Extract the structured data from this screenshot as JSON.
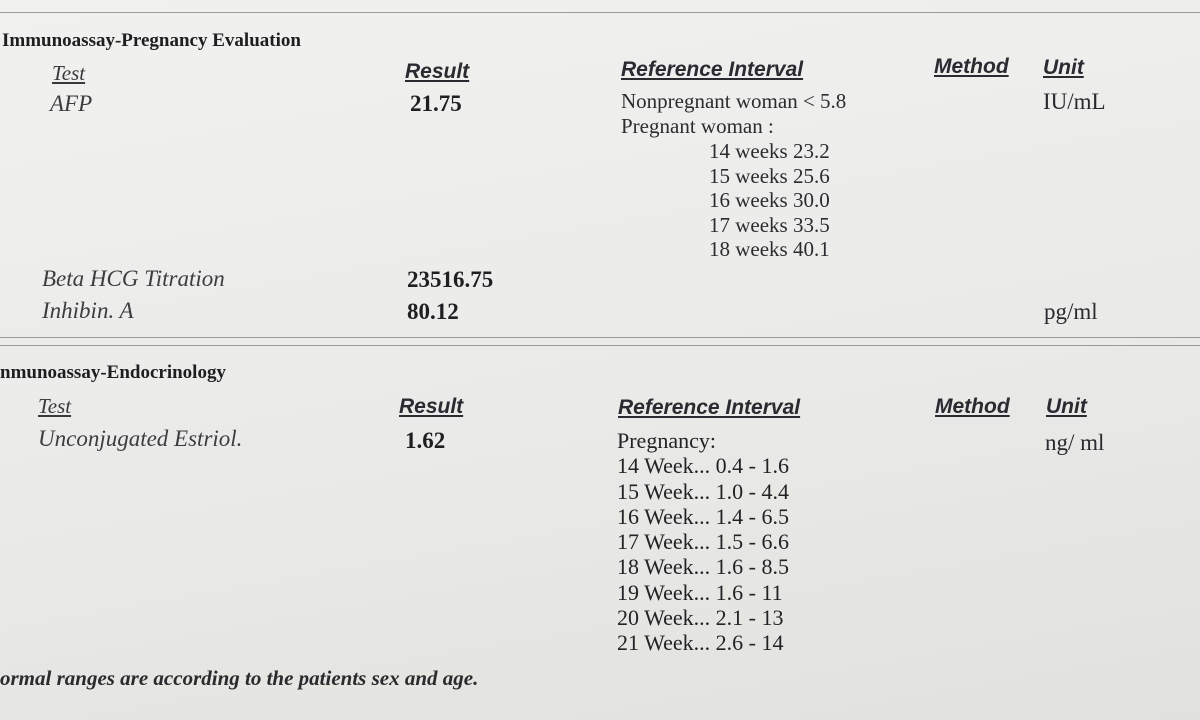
{
  "sections": [
    {
      "title": "Immunoassay-Pregnancy Evaluation",
      "headers": {
        "test": "Test",
        "result": "Result",
        "reference": "Reference Interval",
        "method": "Method",
        "unit": "Unit"
      },
      "rows": [
        {
          "test": "AFP",
          "result": "21.75",
          "unit": "IU/mL",
          "reference": [
            "Nonpregnant woman  < 5.8",
            "Pregnant woman :"
          ],
          "reference_weeks": [
            "14 weeks  23.2",
            "15 weeks  25.6",
            "16 weeks  30.0",
            "17 weeks  33.5",
            "18 weeks  40.1"
          ]
        },
        {
          "test": "Beta HCG Titration",
          "result": "23516.75",
          "unit": ""
        },
        {
          "test": "Inhibin. A",
          "result": "80.12",
          "unit": "pg/ml"
        }
      ]
    },
    {
      "title": "nmunoassay-Endocrinology",
      "headers": {
        "test": "Test",
        "result": "Result",
        "reference": "Reference Interval",
        "method": "Method",
        "unit": "Unit"
      },
      "rows": [
        {
          "test": "Unconjugated Estriol.",
          "result": "1.62",
          "unit": "ng/ ml",
          "reference": [
            "Pregnancy:",
            "14 Week... 0.4 - 1.6",
            "15 Week... 1.0 - 4.4",
            "16 Week... 1.4 - 6.5",
            "17 Week... 1.5 - 6.6",
            "18 Week... 1.6 - 8.5",
            "19 Week... 1.6 - 11",
            "20 Week... 2.1 - 13",
            "21 Week... 2.6 - 14"
          ]
        }
      ]
    }
  ],
  "footnote": "ormal ranges are according to the patients sex and age."
}
